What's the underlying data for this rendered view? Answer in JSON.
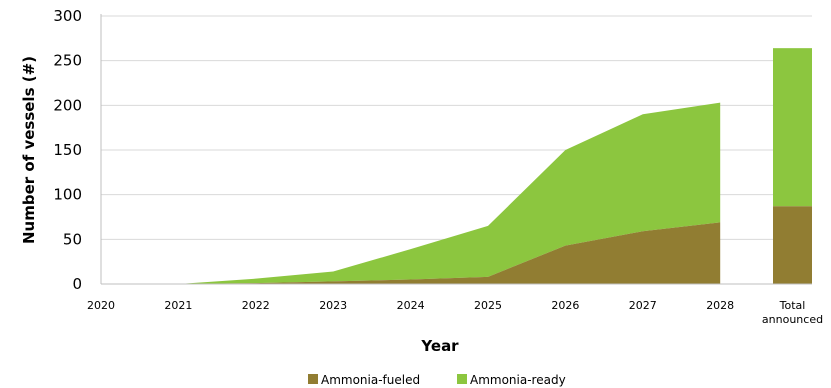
{
  "chart_data": {
    "type": "area",
    "x": [
      "2020",
      "2021",
      "2022",
      "2023",
      "2024",
      "2025",
      "2026",
      "2027",
      "2028"
    ],
    "extra_category": {
      "label_line1": "Total",
      "label_line2": "announced"
    },
    "series": [
      {
        "name": "Ammonia-fueled",
        "color": "#917d32",
        "values": [
          0,
          0,
          1,
          3,
          5,
          8,
          43,
          59,
          69
        ],
        "total_announced": 87
      },
      {
        "name": "Ammonia-ready",
        "color": "#8cc63f",
        "values": [
          0,
          0,
          5,
          11,
          34,
          57,
          107,
          131,
          134
        ],
        "total_announced": 177
      }
    ],
    "stacked": true,
    "xlabel": "Year",
    "ylabel": "Number of vessels (#)",
    "ylim": [
      0,
      300
    ],
    "yticks": [
      0,
      50,
      100,
      150,
      200,
      250,
      300
    ],
    "grid": "horizontal",
    "legend_position": "bottom-center"
  }
}
